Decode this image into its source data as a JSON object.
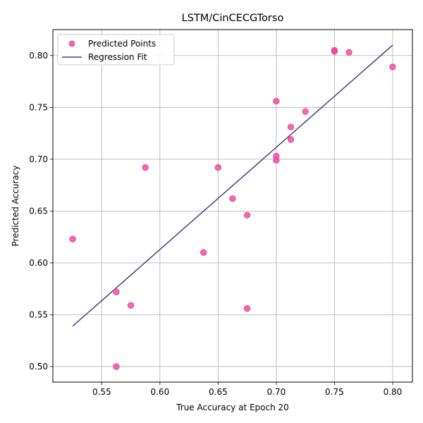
{
  "chart_data": {
    "type": "scatter",
    "title": "LSTM/CinCECGTorso",
    "xlabel": "True Accuracy at Epoch 20",
    "ylabel": "Predicted Accuracy",
    "xlim": [
      0.508,
      0.817
    ],
    "ylim": [
      0.485,
      0.825
    ],
    "xticks": [
      "0.55",
      "0.60",
      "0.65",
      "0.70",
      "0.75",
      "0.80"
    ],
    "yticks": [
      "0.50",
      "0.55",
      "0.60",
      "0.65",
      "0.70",
      "0.75",
      "0.80"
    ],
    "grid": true,
    "legend_position": "top-left",
    "series": [
      {
        "name": "Predicted Points",
        "kind": "scatter",
        "color": "#f0449e",
        "points": [
          [
            0.525,
            0.623
          ],
          [
            0.5625,
            0.572
          ],
          [
            0.5625,
            0.5
          ],
          [
            0.575,
            0.559
          ],
          [
            0.5875,
            0.692
          ],
          [
            0.6375,
            0.61
          ],
          [
            0.65,
            0.692
          ],
          [
            0.6625,
            0.662
          ],
          [
            0.675,
            0.646
          ],
          [
            0.675,
            0.556
          ],
          [
            0.7,
            0.756
          ],
          [
            0.7,
            0.703
          ],
          [
            0.7,
            0.699
          ],
          [
            0.7125,
            0.731
          ],
          [
            0.7125,
            0.719
          ],
          [
            0.725,
            0.746
          ],
          [
            0.75,
            0.805
          ],
          [
            0.75,
            0.804
          ],
          [
            0.7625,
            0.803
          ],
          [
            0.8,
            0.789
          ]
        ]
      },
      {
        "name": "Regression Fit",
        "kind": "line",
        "color": "#483d8b",
        "points": [
          [
            0.525,
            0.539
          ],
          [
            0.8,
            0.81
          ]
        ]
      }
    ]
  }
}
